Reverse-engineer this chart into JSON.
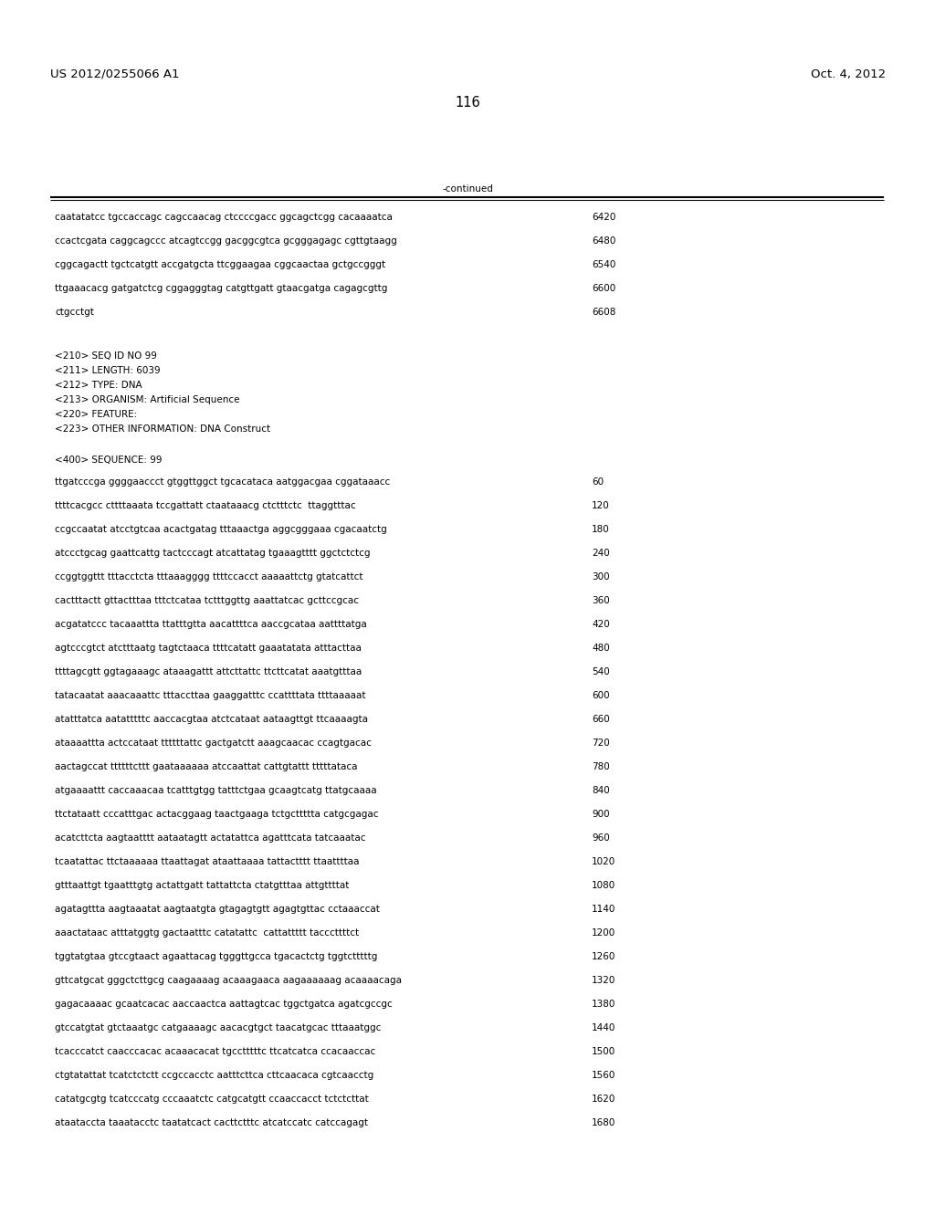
{
  "header_left": "US 2012/0255066 A1",
  "header_right": "Oct. 4, 2012",
  "page_number": "116",
  "continued_label": "-continued",
  "background_color": "#ffffff",
  "text_color": "#000000",
  "font_size_header": 9.5,
  "font_size_body": 7.5,
  "font_size_page": 10.5,
  "continued_lines": [
    [
      "caatatatcc tgccaccagc cagccaacag ctccccgacc ggcagctcgg cacaaaatca",
      "6420"
    ],
    [
      "ccactcgata caggcagccc atcagtccgg gacggcgtca gcgggagagc cgttgtaagg",
      "6480"
    ],
    [
      "cggcagactt tgctcatgtt accgatgcta ttcggaagaa cggcaactaa gctgccgggt",
      "6540"
    ],
    [
      "ttgaaacacg gatgatctcg cggagggtag catgttgatt gtaacgatga cagagcgttg",
      "6600"
    ],
    [
      "ctgcctgt",
      "6608"
    ]
  ],
  "metadata_lines": [
    "<210> SEQ ID NO 99",
    "<211> LENGTH: 6039",
    "<212> TYPE: DNA",
    "<213> ORGANISM: Artificial Sequence",
    "<220> FEATURE:",
    "<223> OTHER INFORMATION: DNA Construct"
  ],
  "sequence_header": "<400> SEQUENCE: 99",
  "sequence_lines": [
    [
      "ttgatcccga ggggaaccct gtggttggct tgcacataca aatggacgaa cggataaacc",
      "60"
    ],
    [
      "ttttcacgcc cttttaaata tccgattatt ctaataaacg ctctttctc  ttaggtttac",
      "120"
    ],
    [
      "ccgccaatat atcctgtcaa acactgatag tttaaactga aggcgggaaa cgacaatctg",
      "180"
    ],
    [
      "atccctgcag gaattcattg tactcccagt atcattatag tgaaagtttt ggctctctcg",
      "240"
    ],
    [
      "ccggtggttt tttacctcta tttaaagggg ttttccacct aaaaattctg gtatcattct",
      "300"
    ],
    [
      "cactttactt gttactttaa tttctcataa tctttggttg aaattatcac gcttccgcac",
      "360"
    ],
    [
      "acgatatccc tacaaattta ttatttgtta aacattttca aaccgcataa aattttatga",
      "420"
    ],
    [
      "agtcccgtct atctttaatg tagtctaaca ttttcatatt gaaatatata atttacttaa",
      "480"
    ],
    [
      "ttttagcgtt ggtagaaagc ataaagattt attcttattc ttcttcatat aaatgtttaa",
      "540"
    ],
    [
      "tatacaatat aaacaaattc tttaccttaa gaaggatttc ccattttata ttttaaaaat",
      "600"
    ],
    [
      "atatttatca aatatttttc aaccacgtaa atctcataat aataagttgt ttcaaaagta",
      "660"
    ],
    [
      "ataaaattta actccataat ttttttattc gactgatctt aaagcaacac ccagtgacac",
      "720"
    ],
    [
      "aactagccat ttttttcttt gaataaaaaa atccaattat cattgtattt tttttataca",
      "780"
    ],
    [
      "atgaaaattt caccaaacaa tcatttgtgg tatttctgaa gcaagtcatg ttatgcaaaa",
      "840"
    ],
    [
      "ttctataatt cccatttgac actacggaag taactgaaga tctgcttttta catgcgagac",
      "900"
    ],
    [
      "acatcttcta aagtaatttt aataatagtt actatattca agatttcata tatcaaatac",
      "960"
    ],
    [
      "tcaatattac ttctaaaaaa ttaattagat ataattaaaa tattactttt ttaattttaa",
      "1020"
    ],
    [
      "gtttaattgt tgaatttgtg actattgatt tattattcta ctatgtttaa attgttttat",
      "1080"
    ],
    [
      "agatagttta aagtaaatat aagtaatgta gtagagtgtt agagtgttac cctaaaccat",
      "1140"
    ],
    [
      "aaactataac atttatggtg gactaatttc catatattc  cattattttt tacccttttct",
      "1200"
    ],
    [
      "tggtatgtaa gtccgtaact agaattacag tgggttgcca tgacactctg tggtctttttg",
      "1260"
    ],
    [
      "gttcatgcat gggctcttgcg caagaaaag acaaagaaca aagaaaaaag acaaaacaga",
      "1320"
    ],
    [
      "gagacaaaac gcaatcacac aaccaactca aattagtcac tggctgatca agatcgccgc",
      "1380"
    ],
    [
      "gtccatgtat gtctaaatgc catgaaaagc aacacgtgct taacatgcac tttaaatggc",
      "1440"
    ],
    [
      "tcacccatct caacccacac acaaacacat tgcctttttc ttcatcatca ccacaaccac",
      "1500"
    ],
    [
      "ctgtatattat tcatctctctt ccgccacctc aatttcttca cttcaacaca cgtcaacctg",
      "1560"
    ],
    [
      "catatgcgtg tcatcccatg cccaaatctc catgcatgtt ccaaccacct tctctcttat",
      "1620"
    ],
    [
      "ataataccta taaatacctc taatatcact cacttctttc atcatccatc catccagagt",
      "1680"
    ]
  ]
}
